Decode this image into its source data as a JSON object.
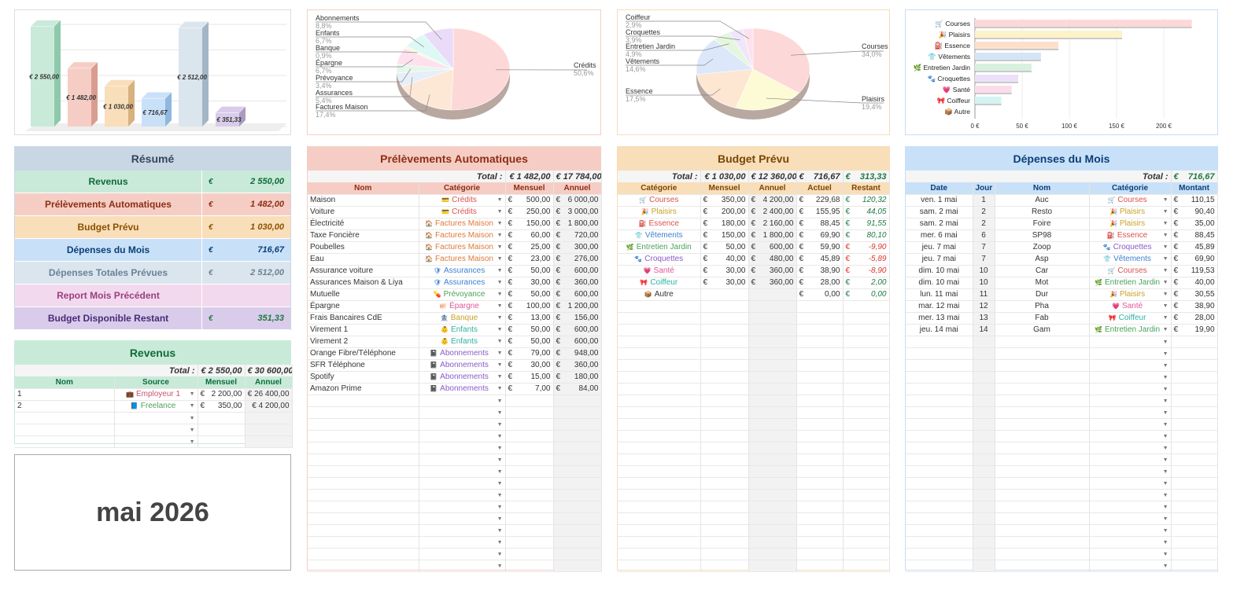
{
  "colors": {
    "green": "#c9ead9",
    "red": "#f6cdc4",
    "orange": "#f9deba",
    "blue": "#c9e1f8",
    "grey": "#dbe5ee",
    "pink": "#f3d9ee",
    "purple": "#d9ccea",
    "resume_head": "#c9d7e4"
  },
  "chart_data": [
    {
      "type": "bar",
      "categories": [
        "Revenus",
        "Prélèvements Automatiques",
        "Budget Prévu",
        "Dépenses du Mois",
        "Dépenses Totales Prévues",
        "Budget Disponible Restant"
      ],
      "values": [
        2550,
        1482,
        1030,
        716.67,
        2512,
        351.33
      ],
      "labels": [
        "€ 2 550,00",
        "€ 1 482,00",
        "€ 1 030,00",
        "€ 716,67",
        "€ 2 512,00",
        "€ 351,33"
      ]
    },
    {
      "type": "pie",
      "title": "",
      "slices": [
        {
          "name": "Crédits",
          "pct": "50,6%",
          "value": 50.6
        },
        {
          "name": "Factures Maison",
          "pct": "17,4%",
          "value": 17.4
        },
        {
          "name": "Assurances",
          "pct": "5,4%",
          "value": 5.4
        },
        {
          "name": "Prévoyance",
          "pct": "3,4%",
          "value": 3.4
        },
        {
          "name": "Épargne",
          "pct": "6,7%",
          "value": 6.7
        },
        {
          "name": "Banque",
          "pct": "0,9%",
          "value": 0.9
        },
        {
          "name": "Enfants",
          "pct": "6,7%",
          "value": 6.7
        },
        {
          "name": "Abonnements",
          "pct": "8,8%",
          "value": 8.8
        }
      ]
    },
    {
      "type": "pie",
      "slices": [
        {
          "name": "Courses",
          "pct": "34,0%",
          "value": 34.0
        },
        {
          "name": "Plaisirs",
          "pct": "19,4%",
          "value": 19.4
        },
        {
          "name": "Essence",
          "pct": "17,5%",
          "value": 17.5
        },
        {
          "name": "Vêtements",
          "pct": "14,6%",
          "value": 14.6
        },
        {
          "name": "Entretien Jardin",
          "pct": "4,9%",
          "value": 4.9
        },
        {
          "name": "Croquettes",
          "pct": "3,9%",
          "value": 3.9
        },
        {
          "name": "Coiffeur",
          "pct": "2,9%",
          "value": 2.9
        }
      ]
    },
    {
      "type": "bar",
      "orientation": "horizontal",
      "categories": [
        "Courses",
        "Plaisirs",
        "Essence",
        "Vêtements",
        "Entretien Jardin",
        "Croquettes",
        "Santé",
        "Coiffeur",
        "Autre"
      ],
      "values": [
        229.68,
        155.95,
        88.45,
        69.9,
        59.9,
        45.89,
        38.9,
        28.0,
        0
      ],
      "xticks": [
        "0 €",
        "50 €",
        "100 €",
        "150 €",
        "200 €"
      ],
      "xlim": [
        0,
        250
      ]
    }
  ],
  "resume": {
    "title": "Résumé",
    "rows": [
      {
        "label": "Revenus",
        "cur": "€",
        "value": "2 550,00",
        "bg": "#c9ead9",
        "fg": "#0d6b3a"
      },
      {
        "label": "Prélèvements Automatiques",
        "cur": "€",
        "value": "1 482,00",
        "bg": "#f6cdc4",
        "fg": "#8b2f14"
      },
      {
        "label": "Budget Prévu",
        "cur": "€",
        "value": "1 030,00",
        "bg": "#f9deba",
        "fg": "#8a5200"
      },
      {
        "label": "Dépenses du Mois",
        "cur": "€",
        "value": "716,67",
        "bg": "#c9e1f8",
        "fg": "#0b3f78"
      },
      {
        "label": "Dépenses Totales Prévues",
        "cur": "€",
        "value": "2 512,00",
        "bg": "#dbe5ee",
        "fg": "#6b8296"
      },
      {
        "label": "Report Mois Précédent",
        "cur": "",
        "value": "",
        "bg": "#f3d9ee",
        "fg": "#99407c"
      },
      {
        "label": "Budget Disponible Restant",
        "cur": "€",
        "value": "351,33",
        "bg": "#d9ccea",
        "fg": "#4a2a78",
        "valfg": "#1f7a43"
      }
    ]
  },
  "revenus": {
    "title": "Revenus",
    "total_label": "Total :",
    "total_m": "€ 2 550,00",
    "total_a": "€ 30 600,00",
    "headers": [
      "Nom",
      "Source",
      "Mensuel",
      "Annuel"
    ],
    "rows": [
      {
        "nom": "1",
        "icon": "💼",
        "source": "Employeur 1",
        "m": "2 200,00",
        "a": "€ 26 400,00",
        "color": "#c9566a"
      },
      {
        "nom": "2",
        "icon": "📘",
        "source": "Freelance",
        "m": "350,00",
        "a": "€ 4 200,00",
        "color": "#4aa15b"
      }
    ]
  },
  "month": "mai 2026",
  "prelev": {
    "title": "Prélèvements Automatiques",
    "total_label": "Total :",
    "total_m": "€ 1 482,00",
    "total_a": "€ 17 784,00",
    "headers": [
      "Nom",
      "Catégorie",
      "Mensuel",
      "Annuel"
    ],
    "rows": [
      {
        "nom": "Maison",
        "cat": "Crédits",
        "icon": "💳",
        "color": "#d9534f",
        "m": "500,00",
        "a": "6 000,00"
      },
      {
        "nom": "Voiture",
        "cat": "Crédits",
        "icon": "💳",
        "color": "#d9534f",
        "m": "250,00",
        "a": "3 000,00"
      },
      {
        "nom": "Électricité",
        "cat": "Factures Maison",
        "icon": "🏠",
        "color": "#e07a3a",
        "m": "150,00",
        "a": "1 800,00"
      },
      {
        "nom": "Taxe Foncière",
        "cat": "Factures Maison",
        "icon": "🏠",
        "color": "#e07a3a",
        "m": "60,00",
        "a": "720,00"
      },
      {
        "nom": "Poubelles",
        "cat": "Factures Maison",
        "icon": "🏠",
        "color": "#e07a3a",
        "m": "25,00",
        "a": "300,00"
      },
      {
        "nom": "Eau",
        "cat": "Factures Maison",
        "icon": "🏠",
        "color": "#e07a3a",
        "m": "23,00",
        "a": "276,00"
      },
      {
        "nom": "Assurance voiture",
        "cat": "Assurances",
        "icon": "🛡",
        "color": "#3b82d1",
        "m": "50,00",
        "a": "600,00"
      },
      {
        "nom": "Assurances Maison & Liya",
        "cat": "Assurances",
        "icon": "🛡",
        "color": "#3b82d1",
        "m": "30,00",
        "a": "360,00"
      },
      {
        "nom": "Mutuelle",
        "cat": "Prévoyance",
        "icon": "💊",
        "color": "#4aa15b",
        "m": "50,00",
        "a": "600,00"
      },
      {
        "nom": "Épargne",
        "cat": "Épargne",
        "icon": "🐖",
        "color": "#e0559a",
        "m": "100,00",
        "a": "1 200,00"
      },
      {
        "nom": "Frais Bancaires CdE",
        "cat": "Banque",
        "icon": "🏦",
        "color": "#c9a227",
        "m": "13,00",
        "a": "156,00"
      },
      {
        "nom": "Virement 1",
        "cat": "Enfants",
        "icon": "👶",
        "color": "#2bb3a3",
        "m": "50,00",
        "a": "600,00"
      },
      {
        "nom": "Virement 2",
        "cat": "Enfants",
        "icon": "👶",
        "color": "#2bb3a3",
        "m": "50,00",
        "a": "600,00"
      },
      {
        "nom": "Orange Fibre/Téléphone",
        "cat": "Abonnements",
        "icon": "📓",
        "color": "#8a5cc9",
        "m": "79,00",
        "a": "948,00"
      },
      {
        "nom": "SFR Téléphone",
        "cat": "Abonnements",
        "icon": "📓",
        "color": "#8a5cc9",
        "m": "30,00",
        "a": "360,00"
      },
      {
        "nom": "Spotify",
        "cat": "Abonnements",
        "icon": "📓",
        "color": "#8a5cc9",
        "m": "15,00",
        "a": "180,00"
      },
      {
        "nom": "Amazon Prime",
        "cat": "Abonnements",
        "icon": "📓",
        "color": "#8a5cc9",
        "m": "7,00",
        "a": "84,00"
      }
    ]
  },
  "budget": {
    "title": "Budget Prévu",
    "total_label": "Total :",
    "total_m": "€ 1 030,00",
    "total_a": "€ 12 360,00",
    "total_act": "716,67",
    "total_rest": "313,33",
    "headers": [
      "Catégorie",
      "Mensuel",
      "Annuel",
      "Actuel",
      "Restant"
    ],
    "rows": [
      {
        "cat": "Courses",
        "icon": "🛒",
        "color": "#d9534f",
        "m": "350,00",
        "a": "4 200,00",
        "act": "229,68",
        "rest": "120,32",
        "neg": false
      },
      {
        "cat": "Plaisirs",
        "icon": "🎉",
        "color": "#c9a227",
        "m": "200,00",
        "a": "2 400,00",
        "act": "155,95",
        "rest": "44,05",
        "neg": false
      },
      {
        "cat": "Essence",
        "icon": "⛽",
        "color": "#d9534f",
        "m": "180,00",
        "a": "2 160,00",
        "act": "88,45",
        "rest": "91,55",
        "neg": false
      },
      {
        "cat": "Vêtements",
        "icon": "👕",
        "color": "#3b82d1",
        "m": "150,00",
        "a": "1 800,00",
        "act": "69,90",
        "rest": "80,10",
        "neg": false
      },
      {
        "cat": "Entretien Jardin",
        "icon": "🌿",
        "color": "#4aa15b",
        "m": "50,00",
        "a": "600,00",
        "act": "59,90",
        "rest": "-9,90",
        "neg": true
      },
      {
        "cat": "Croquettes",
        "icon": "🐾",
        "color": "#8a5cc9",
        "m": "40,00",
        "a": "480,00",
        "act": "45,89",
        "rest": "-5,89",
        "neg": true
      },
      {
        "cat": "Santé",
        "icon": "💗",
        "color": "#e0559a",
        "m": "30,00",
        "a": "360,00",
        "act": "38,90",
        "rest": "-8,90",
        "neg": true
      },
      {
        "cat": "Coiffeur",
        "icon": "🎀",
        "color": "#2bb3a3",
        "m": "30,00",
        "a": "360,00",
        "act": "28,00",
        "rest": "2,00",
        "neg": false
      },
      {
        "cat": "Autre",
        "icon": "📦",
        "color": "#333333",
        "m": "",
        "a": "",
        "act": "0,00",
        "rest": "0,00",
        "neg": false
      }
    ]
  },
  "depenses": {
    "title": "Dépenses du Mois",
    "total_label": "Total :",
    "total": "716,67",
    "headers": [
      "Date",
      "Jour",
      "Nom",
      "Catégorie",
      "Montant"
    ],
    "rows": [
      {
        "date": "ven. 1 mai",
        "jour": "1",
        "nom": "Auc",
        "cat": "Courses",
        "icon": "🛒",
        "color": "#d9534f",
        "m": "110,15"
      },
      {
        "date": "sam. 2 mai",
        "jour": "2",
        "nom": "Resto",
        "cat": "Plaisirs",
        "icon": "🎉",
        "color": "#c9a227",
        "m": "90,40"
      },
      {
        "date": "sam. 2 mai",
        "jour": "2",
        "nom": "Foire",
        "cat": "Plaisirs",
        "icon": "🎉",
        "color": "#c9a227",
        "m": "35,00"
      },
      {
        "date": "mer. 6 mai",
        "jour": "6",
        "nom": "SP98",
        "cat": "Essence",
        "icon": "⛽",
        "color": "#d9534f",
        "m": "88,45"
      },
      {
        "date": "jeu. 7 mai",
        "jour": "7",
        "nom": "Zoop",
        "cat": "Croquettes",
        "icon": "🐾",
        "color": "#8a5cc9",
        "m": "45,89"
      },
      {
        "date": "jeu. 7 mai",
        "jour": "7",
        "nom": "Asp",
        "cat": "Vêtements",
        "icon": "👕",
        "color": "#3b82d1",
        "m": "69,90"
      },
      {
        "date": "dim. 10 mai",
        "jour": "10",
        "nom": "Car",
        "cat": "Courses",
        "icon": "🛒",
        "color": "#d9534f",
        "m": "119,53"
      },
      {
        "date": "dim. 10 mai",
        "jour": "10",
        "nom": "Mot",
        "cat": "Entretien Jardin",
        "icon": "🌿",
        "color": "#4aa15b",
        "m": "40,00"
      },
      {
        "date": "lun. 11 mai",
        "jour": "11",
        "nom": "Dur",
        "cat": "Plaisirs",
        "icon": "🎉",
        "color": "#c9a227",
        "m": "30,55"
      },
      {
        "date": "mar. 12 mai",
        "jour": "12",
        "nom": "Pha",
        "cat": "Santé",
        "icon": "💗",
        "color": "#e0559a",
        "m": "38,90"
      },
      {
        "date": "mer. 13 mai",
        "jour": "13",
        "nom": "Fab",
        "cat": "Coiffeur",
        "icon": "🎀",
        "color": "#2bb3a3",
        "m": "28,00"
      },
      {
        "date": "jeu. 14 mai",
        "jour": "14",
        "nom": "Gam",
        "cat": "Entretien Jardin",
        "icon": "🌿",
        "color": "#4aa15b",
        "m": "19,90"
      }
    ]
  },
  "currency": "€"
}
